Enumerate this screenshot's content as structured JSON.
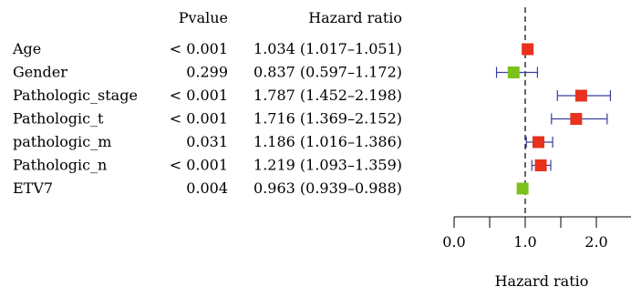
{
  "chart_data": {
    "type": "forest",
    "columns": {
      "pvalue": "Pvalue",
      "hr": "Hazard ratio"
    },
    "xlabel": "Hazard ratio",
    "xlim": [
      0.0,
      2.4
    ],
    "ticks": [
      0.0,
      0.5,
      1.0,
      1.5,
      2.0
    ],
    "tick_labels": [
      "0.0",
      "",
      "1.0",
      "",
      "2.0"
    ],
    "reference_line": 1.0,
    "colors": {
      "risk": "#e8311f",
      "protective": "#7cc21c",
      "ci": "#3b3f9e",
      "axis": "#000000"
    },
    "rows": [
      {
        "label": "Age",
        "pvalue": "< 0.001",
        "hr_text": "1.034 (1.017–1.051)",
        "hr": 1.034,
        "low": 1.017,
        "high": 1.051
      },
      {
        "label": "Gender",
        "pvalue": "0.299",
        "hr_text": "0.837 (0.597–1.172)",
        "hr": 0.837,
        "low": 0.597,
        "high": 1.172
      },
      {
        "label": "Pathologic_stage",
        "pvalue": "< 0.001",
        "hr_text": "1.787 (1.452–2.198)",
        "hr": 1.787,
        "low": 1.452,
        "high": 2.198
      },
      {
        "label": "Pathologic_t",
        "pvalue": "< 0.001",
        "hr_text": "1.716 (1.369–2.152)",
        "hr": 1.716,
        "low": 1.369,
        "high": 2.152
      },
      {
        "label": "pathologic_m",
        "pvalue": "0.031",
        "hr_text": "1.186 (1.016–1.386)",
        "hr": 1.186,
        "low": 1.016,
        "high": 1.386
      },
      {
        "label": "Pathologic_n",
        "pvalue": "< 0.001",
        "hr_text": "1.219 (1.093–1.359)",
        "hr": 1.219,
        "low": 1.093,
        "high": 1.359
      },
      {
        "label": "ETV7",
        "pvalue": "0.004",
        "hr_text": "0.963 (0.939–0.988)",
        "hr": 0.963,
        "low": 0.939,
        "high": 0.988
      }
    ]
  }
}
